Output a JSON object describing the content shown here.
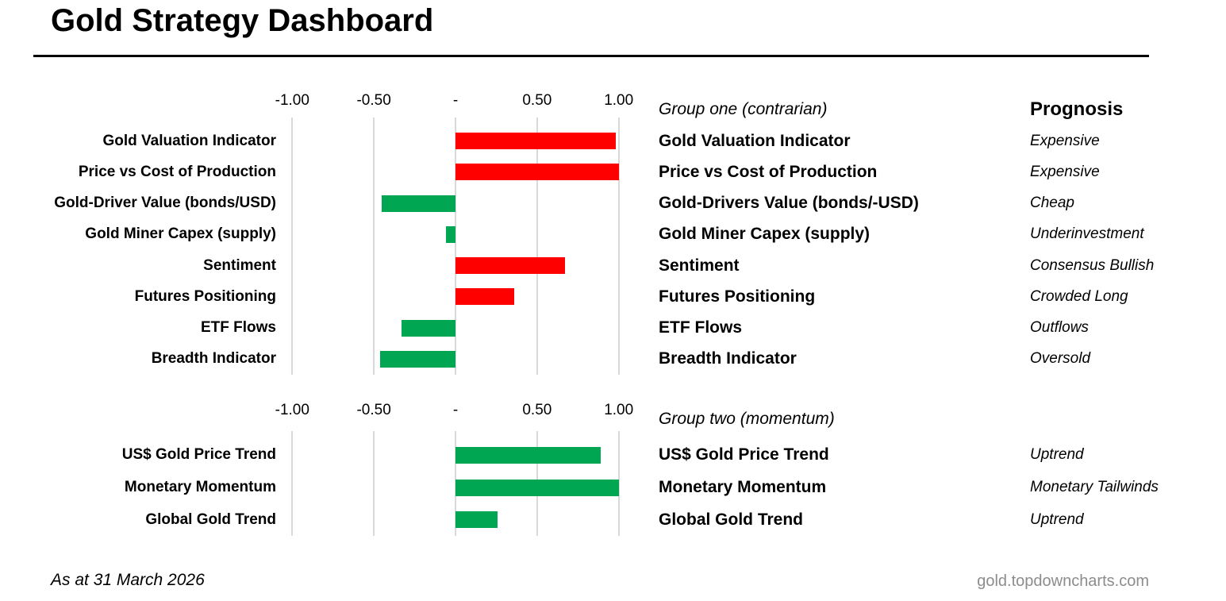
{
  "title": "Gold Strategy Dashboard",
  "prognosis_header": "Prognosis",
  "footer": {
    "date_note": "As at 31 March 2026",
    "source": "gold.topdowncharts.com"
  },
  "colors": {
    "red": "#FF0000",
    "green": "#00A651",
    "gridline": "#D9D9D9",
    "source_text": "#8C8C8C"
  },
  "chart_data": [
    {
      "type": "bar",
      "orientation": "horizontal",
      "group_label": "Group one (contrarian)",
      "xlim": [
        -1.05,
        1.05
      ],
      "gridline_values": [
        -1.0,
        -0.5,
        0,
        0.5,
        1.0
      ],
      "tick_labels": [
        "-1.00",
        "-0.50",
        "-",
        "0.50",
        "1.00"
      ],
      "categories": [
        "Gold Valuation Indicator",
        "Price vs Cost of Production",
        "Gold-Driver Value (bonds/USD)",
        "Gold Miner Capex (supply)",
        "Sentiment",
        "Futures Positioning",
        "ETF Flows",
        "Breadth Indicator"
      ],
      "values": [
        0.98,
        1.0,
        -0.45,
        -0.06,
        0.67,
        0.36,
        -0.33,
        -0.46
      ],
      "bar_colors": [
        "red",
        "red",
        "green",
        "green",
        "red",
        "red",
        "green",
        "green"
      ],
      "legend_items": [
        {
          "name": "Gold Valuation Indicator",
          "prognosis": "Expensive"
        },
        {
          "name": "Price vs Cost of Production",
          "prognosis": "Expensive"
        },
        {
          "name": "Gold-Drivers Value (bonds/-USD)",
          "prognosis": "Cheap"
        },
        {
          "name": "Gold Miner Capex (supply)",
          "prognosis": "Underinvestment"
        },
        {
          "name": "Sentiment",
          "prognosis": "Consensus Bullish"
        },
        {
          "name": "Futures Positioning",
          "prognosis": "Crowded Long"
        },
        {
          "name": "ETF Flows",
          "prognosis": "Outflows"
        },
        {
          "name": "Breadth Indicator",
          "prognosis": "Oversold"
        }
      ]
    },
    {
      "type": "bar",
      "orientation": "horizontal",
      "group_label": "Group two (momentum)",
      "xlim": [
        -1.05,
        1.05
      ],
      "gridline_values": [
        -1.0,
        -0.5,
        0,
        0.5,
        1.0
      ],
      "tick_labels": [
        "-1.00",
        "-0.50",
        "-",
        "0.50",
        "1.00"
      ],
      "categories": [
        "US$ Gold Price Trend",
        "Monetary Momentum",
        "Global Gold Trend"
      ],
      "values": [
        0.89,
        1.0,
        0.26
      ],
      "bar_colors": [
        "green",
        "green",
        "green"
      ],
      "legend_items": [
        {
          "name": "US$ Gold Price Trend",
          "prognosis": "Uptrend"
        },
        {
          "name": "Monetary Momentum",
          "prognosis": "Monetary Tailwinds"
        },
        {
          "name": "Global Gold Trend",
          "prognosis": "Uptrend"
        }
      ]
    }
  ]
}
